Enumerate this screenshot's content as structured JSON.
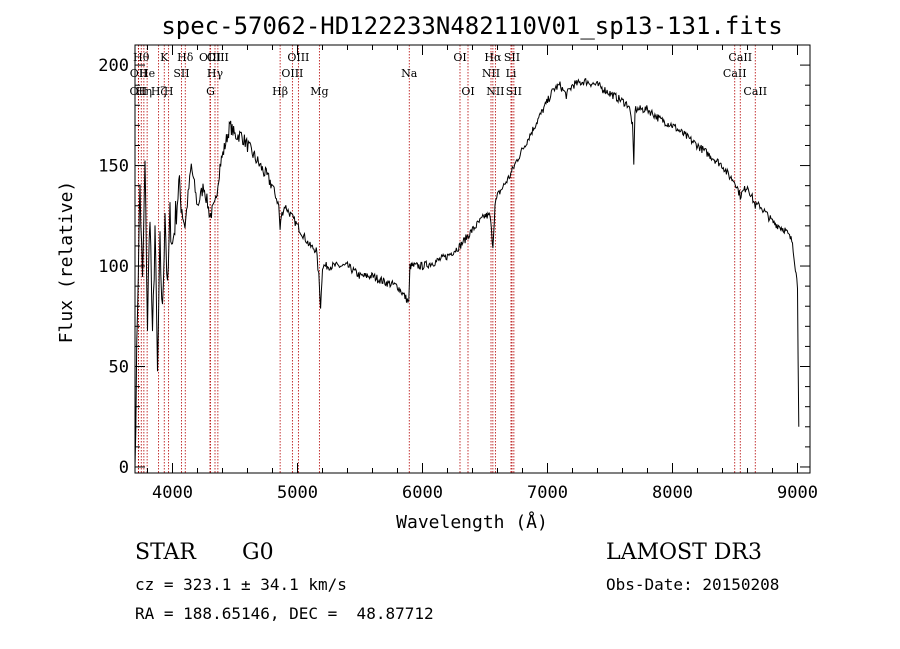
{
  "chart_data": {
    "type": "line",
    "title": "spec-57062-HD122233N482110V01_sp13-131.fits",
    "xlabel": "Wavelength (Å)",
    "ylabel": "Flux (relative)",
    "xlim": [
      3700,
      9100
    ],
    "ylim": [
      -3,
      210
    ],
    "x_ticks": [
      4000,
      5000,
      6000,
      7000,
      8000,
      9000
    ],
    "y_ticks": [
      0,
      50,
      100,
      150,
      200
    ],
    "series": [
      {
        "name": "spectrum",
        "x": [
          3700,
          3720,
          3740,
          3760,
          3780,
          3800,
          3820,
          3840,
          3860,
          3880,
          3900,
          3920,
          3940,
          3960,
          3980,
          4000,
          4050,
          4100,
          4150,
          4200,
          4250,
          4300,
          4340,
          4380,
          4420,
          4460,
          4500,
          4550,
          4600,
          4650,
          4700,
          4750,
          4800,
          4850,
          4861,
          4870,
          4900,
          4950,
          5000,
          5050,
          5100,
          5150,
          5170,
          5185,
          5200,
          5300,
          5400,
          5500,
          5600,
          5700,
          5800,
          5890,
          5900,
          6000,
          6100,
          6200,
          6300,
          6400,
          6500,
          6540,
          6563,
          6580,
          6600,
          6650,
          6700,
          6750,
          6800,
          6900,
          7000,
          7050,
          7100,
          7150,
          7200,
          7300,
          7400,
          7500,
          7600,
          7650,
          7680,
          7690,
          7700,
          7800,
          7900,
          8000,
          8100,
          8200,
          8300,
          8400,
          8450,
          8500,
          8542,
          8600,
          8662,
          8700,
          8800,
          8900,
          8960,
          9000,
          9010
        ],
        "y": [
          0,
          80,
          140,
          90,
          150,
          70,
          130,
          60,
          120,
          45,
          110,
          75,
          130,
          85,
          125,
          110,
          140,
          120,
          150,
          130,
          140,
          125,
          130,
          150,
          160,
          170,
          165,
          165,
          160,
          155,
          150,
          145,
          140,
          130,
          118,
          125,
          130,
          125,
          120,
          115,
          110,
          108,
          95,
          80,
          100,
          100,
          100,
          95,
          95,
          92,
          90,
          82,
          100,
          100,
          102,
          105,
          110,
          118,
          125,
          125,
          110,
          130,
          135,
          140,
          145,
          152,
          158,
          170,
          182,
          188,
          190,
          185,
          190,
          192,
          190,
          186,
          182,
          180,
          170,
          150,
          178,
          178,
          173,
          170,
          165,
          160,
          155,
          150,
          145,
          142,
          135,
          140,
          130,
          130,
          122,
          118,
          112,
          90,
          20
        ]
      }
    ],
    "emission_lines": [
      {
        "name": "OII",
        "wavelength": 3727,
        "row": 3
      },
      {
        "name": "OII",
        "wavelength": 3729,
        "row": 2
      },
      {
        "name": "Hθ",
        "wavelength": 3750,
        "row": 1
      },
      {
        "name": "Hη",
        "wavelength": 3771,
        "row": 3
      },
      {
        "name": "He",
        "wavelength": 3797,
        "row": 2
      },
      {
        "name": "Hζ",
        "wavelength": 3889,
        "row": 3
      },
      {
        "name": "K",
        "wavelength": 3934,
        "row": 1
      },
      {
        "name": "H",
        "wavelength": 3969,
        "row": 3
      },
      {
        "name": "SII",
        "wavelength": 4072,
        "row": 2
      },
      {
        "name": "Hδ",
        "wavelength": 4102,
        "row": 1
      },
      {
        "name": "OIII",
        "wavelength": 4300,
        "row": 1
      },
      {
        "name": "G",
        "wavelength": 4304,
        "row": 3
      },
      {
        "name": "Hγ",
        "wavelength": 4340,
        "row": 2
      },
      {
        "name": "OIII",
        "wavelength": 4363,
        "row": 1
      },
      {
        "name": "Hβ",
        "wavelength": 4861,
        "row": 3
      },
      {
        "name": "OIII",
        "wavelength": 4959,
        "row": 2
      },
      {
        "name": "OIII",
        "wavelength": 5007,
        "row": 1
      },
      {
        "name": "Mg",
        "wavelength": 5175,
        "row": 3
      },
      {
        "name": "Na",
        "wavelength": 5894,
        "row": 2
      },
      {
        "name": "OI",
        "wavelength": 6300,
        "row": 1
      },
      {
        "name": "OI",
        "wavelength": 6364,
        "row": 3
      },
      {
        "name": "NII",
        "wavelength": 6548,
        "row": 2
      },
      {
        "name": "Hα",
        "wavelength": 6563,
        "row": 1
      },
      {
        "name": "NII",
        "wavelength": 6583,
        "row": 3
      },
      {
        "name": "Li",
        "wavelength": 6708,
        "row": 2
      },
      {
        "name": "SII",
        "wavelength": 6716,
        "row": 1
      },
      {
        "name": "SII",
        "wavelength": 6731,
        "row": 3
      },
      {
        "name": "CaII",
        "wavelength": 8498,
        "row": 2
      },
      {
        "name": "CaII",
        "wavelength": 8542,
        "row": 1
      },
      {
        "name": "CaII",
        "wavelength": 8662,
        "row": 3
      }
    ],
    "grid": false,
    "legend": "none"
  },
  "info": {
    "object_class": "STAR",
    "subclass": "G0",
    "survey": "LAMOST DR3",
    "cz": "cz = 323.1 ± 34.1 km/s",
    "obs_date": "Obs-Date: 20150208",
    "coords": "RA = 188.65146, DEC =  48.87712"
  },
  "colors": {
    "spectrum": "#000000",
    "emission_line": "#b40000",
    "axes": "#000000"
  }
}
